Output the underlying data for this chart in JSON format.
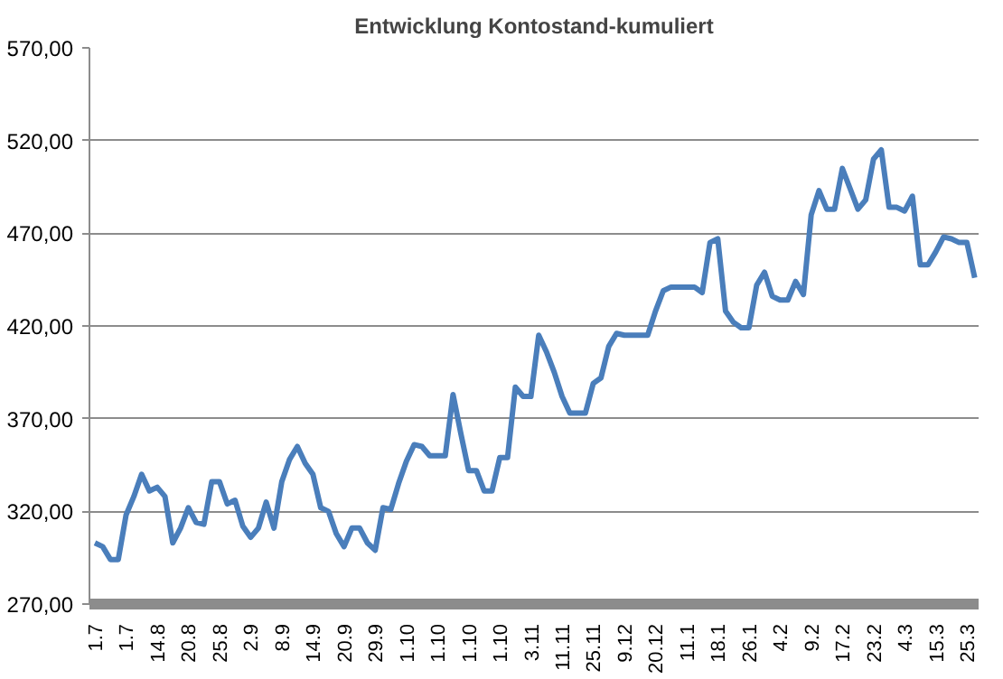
{
  "chart_data": {
    "type": "line",
    "title": "Entwicklung Kontostand-kumuliert",
    "categories": [
      "1.7",
      null,
      null,
      null,
      "1.7",
      null,
      null,
      null,
      "14.8",
      null,
      null,
      null,
      "20.8",
      null,
      null,
      null,
      "25.8",
      null,
      null,
      null,
      "2.9",
      null,
      null,
      null,
      "8.9",
      null,
      null,
      null,
      "14.9",
      null,
      null,
      null,
      "20.9",
      null,
      null,
      null,
      "29.9",
      null,
      null,
      null,
      "1.10",
      null,
      null,
      null,
      "1.10",
      null,
      null,
      null,
      "1.10",
      null,
      null,
      null,
      "1.10",
      null,
      null,
      null,
      "3.11",
      null,
      null,
      null,
      "11.11",
      null,
      null,
      null,
      "25.11",
      null,
      null,
      null,
      "9.12",
      null,
      null,
      null,
      "20.12",
      null,
      null,
      null,
      "11.1",
      null,
      null,
      null,
      "18.1",
      null,
      null,
      null,
      "26.1",
      null,
      null,
      null,
      "4.2",
      null,
      null,
      null,
      "9.2",
      null,
      null,
      null,
      "17.2",
      null,
      null,
      null,
      "23.2",
      null,
      null,
      null,
      "4.3",
      null,
      null,
      null,
      "15.3",
      null,
      null,
      null,
      "25.3",
      null
    ],
    "series": [
      {
        "color": "#4a7ebb",
        "values": [
          303,
          301,
          294,
          294,
          318,
          328,
          340,
          331,
          333,
          328,
          303,
          311,
          322,
          314,
          313,
          336,
          336,
          324,
          326,
          312,
          306,
          311,
          325,
          311,
          336,
          348,
          355,
          346,
          340,
          322,
          320,
          308,
          301,
          311,
          311,
          303,
          299,
          322,
          321,
          335,
          347,
          356,
          355,
          350,
          350,
          350,
          383,
          362,
          342,
          342,
          331,
          331,
          349,
          349,
          387,
          382,
          382,
          415,
          406,
          395,
          382,
          373,
          373,
          373,
          389,
          392,
          409,
          416,
          415,
          415,
          415,
          415,
          428,
          439,
          441,
          441,
          441,
          441,
          438,
          465,
          467,
          428,
          422,
          419,
          419,
          442,
          449,
          436,
          434,
          434,
          444,
          437,
          480,
          493,
          483,
          483,
          505,
          494,
          483,
          488,
          510,
          515,
          484,
          484,
          482,
          490,
          453,
          453,
          460,
          468,
          467,
          465,
          465,
          446
        ]
      }
    ],
    "ylim": [
      270,
      570
    ],
    "yticks": [
      {
        "value": 270,
        "label": "270,00"
      },
      {
        "value": 320,
        "label": "320,00"
      },
      {
        "value": 370,
        "label": "370,00"
      },
      {
        "value": 420,
        "label": "420,00"
      },
      {
        "value": 470,
        "label": "470,00"
      },
      {
        "value": 520,
        "label": "520,00"
      },
      {
        "value": 570,
        "label": "570,00"
      }
    ],
    "grid": "y",
    "marker": "none",
    "line_style": "solid"
  }
}
